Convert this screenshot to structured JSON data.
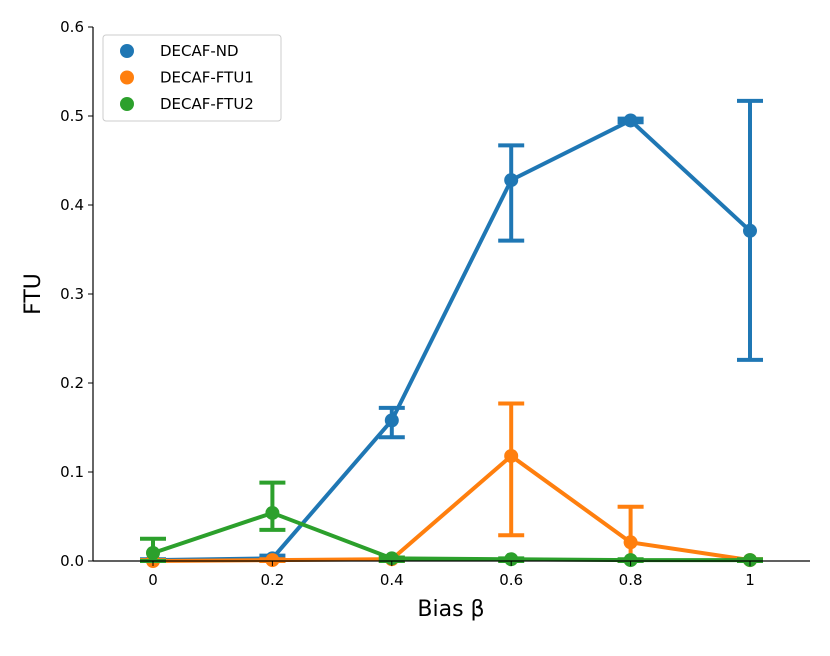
{
  "chart_data": {
    "type": "line",
    "xlabel": "Bias β",
    "ylabel": "FTU",
    "categories": [
      "0",
      "0.2",
      "0.4",
      "0.6",
      "0.8",
      "1"
    ],
    "ylim": [
      0,
      0.6
    ],
    "yticks": [
      "0.0",
      "0.1",
      "0.2",
      "0.3",
      "0.4",
      "0.5",
      "0.6"
    ],
    "grid": false,
    "legend_position": "top-left",
    "series": [
      {
        "name": "DECAF-ND",
        "color": "#1f77b4",
        "values": [
          0.001,
          0.003,
          0.158,
          0.428,
          0.495,
          0.371
        ],
        "ci_low": [
          0.0,
          0.0,
          0.139,
          0.36,
          0.493,
          0.226
        ],
        "ci_high": [
          0.002,
          0.006,
          0.172,
          0.467,
          0.497,
          0.517
        ]
      },
      {
        "name": "DECAF-FTU1",
        "color": "#ff7f0e",
        "values": [
          0.0,
          0.001,
          0.002,
          0.118,
          0.021,
          0.001
        ],
        "ci_low": [
          0.0,
          0.0,
          0.0,
          0.029,
          0.0,
          0.0
        ],
        "ci_high": [
          0.001,
          0.002,
          0.004,
          0.177,
          0.061,
          0.002
        ]
      },
      {
        "name": "DECAF-FTU2",
        "color": "#2ca02c",
        "values": [
          0.009,
          0.054,
          0.003,
          0.002,
          0.001,
          0.001
        ],
        "ci_low": [
          0.0,
          0.035,
          0.0,
          0.0,
          0.0,
          0.0
        ],
        "ci_high": [
          0.025,
          0.088,
          0.004,
          0.003,
          0.002,
          0.002
        ]
      }
    ]
  }
}
